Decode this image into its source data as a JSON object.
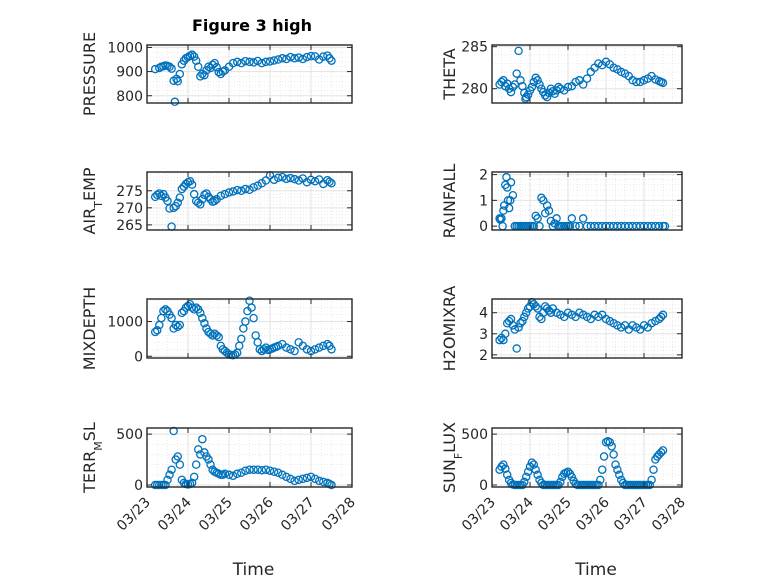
{
  "title": "Figure 3 high",
  "xlabel": "Time",
  "date_ticks": [
    "03/23",
    "03/24",
    "03/25",
    "03/26",
    "03/27",
    "03/28"
  ],
  "marker_color": "#0072BD",
  "chart_data": [
    {
      "type": "scatter",
      "name": "PRESSURE",
      "ylabel_main": "PRESSURE",
      "ylabel_sub": "",
      "xlim": [
        0,
        5
      ],
      "ylim": [
        770,
        1010
      ],
      "yticks": [
        800,
        900,
        1000
      ],
      "yticklabels": [
        "800",
        "900",
        "1000"
      ],
      "grid": true,
      "minor_grid": true,
      "x": [
        0.2,
        0.3,
        0.35,
        0.4,
        0.45,
        0.5,
        0.55,
        0.6,
        0.65,
        0.68,
        0.72,
        0.75,
        0.8,
        0.85,
        0.9,
        0.95,
        1.0,
        1.05,
        1.1,
        1.15,
        1.2,
        1.25,
        1.3,
        1.35,
        1.4,
        1.45,
        1.5,
        1.55,
        1.6,
        1.65,
        1.7,
        1.75,
        1.8,
        1.85,
        1.9,
        2.0,
        2.1,
        2.2,
        2.3,
        2.4,
        2.5,
        2.6,
        2.7,
        2.8,
        2.9,
        3.0,
        3.1,
        3.2,
        3.3,
        3.4,
        3.5,
        3.6,
        3.7,
        3.8,
        3.9,
        4.0,
        4.1,
        4.2,
        4.3,
        4.4,
        4.45,
        4.5
      ],
      "y": [
        910,
        915,
        920,
        922,
        925,
        923,
        920,
        912,
        862,
        775,
        870,
        860,
        890,
        930,
        945,
        955,
        960,
        965,
        970,
        962,
        945,
        920,
        880,
        890,
        885,
        905,
        920,
        915,
        928,
        935,
        918,
        898,
        890,
        900,
        905,
        920,
        935,
        940,
        935,
        943,
        940,
        938,
        944,
        935,
        940,
        942,
        946,
        950,
        955,
        952,
        960,
        955,
        958,
        952,
        960,
        964,
        963,
        950,
        962,
        966,
        955,
        945
      ]
    },
    {
      "type": "scatter",
      "name": "THETA",
      "ylabel_main": "THETA",
      "ylabel_sub": "",
      "xlim": [
        0,
        5
      ],
      "ylim": [
        278.3,
        285.2
      ],
      "yticks": [
        280,
        285
      ],
      "yticklabels": [
        "280",
        "285"
      ],
      "grid": true,
      "minor_grid": true,
      "x": [
        0.2,
        0.25,
        0.3,
        0.35,
        0.4,
        0.45,
        0.5,
        0.55,
        0.6,
        0.65,
        0.7,
        0.75,
        0.8,
        0.85,
        0.88,
        0.9,
        0.95,
        1.0,
        1.05,
        1.1,
        1.15,
        1.2,
        1.25,
        1.3,
        1.35,
        1.4,
        1.45,
        1.5,
        1.55,
        1.6,
        1.65,
        1.7,
        1.75,
        1.8,
        1.9,
        2.0,
        2.1,
        2.2,
        2.3,
        2.4,
        2.5,
        2.6,
        2.7,
        2.8,
        2.9,
        3.0,
        3.1,
        3.2,
        3.3,
        3.4,
        3.5,
        3.6,
        3.7,
        3.8,
        3.9,
        4.0,
        4.1,
        4.2,
        4.3,
        4.4,
        4.45,
        4.5
      ],
      "y": [
        280.5,
        280.8,
        281.0,
        280.3,
        280.6,
        280.0,
        279.6,
        280.2,
        280.5,
        281.8,
        284.5,
        281.0,
        280.3,
        279.5,
        278.8,
        279.0,
        279.3,
        279.8,
        280.2,
        280.8,
        281.3,
        281.0,
        280.5,
        280.0,
        279.6,
        279.2,
        279.0,
        279.5,
        280.0,
        279.7,
        279.4,
        279.8,
        280.2,
        280.0,
        279.8,
        280.2,
        280.3,
        280.8,
        281.0,
        280.5,
        281.2,
        282.0,
        282.5,
        283.0,
        282.8,
        283.2,
        282.9,
        282.5,
        282.3,
        282.0,
        281.8,
        281.5,
        281.0,
        280.8,
        280.8,
        281.0,
        281.2,
        281.5,
        281.1,
        280.9,
        280.8,
        280.7
      ]
    },
    {
      "type": "scatter",
      "name": "AIR_TEMP",
      "ylabel_main": "AIR",
      "ylabel_sub": "T",
      "ylabel_tail": "EMP",
      "xlim": [
        0,
        5
      ],
      "ylim": [
        263.5,
        280.5
      ],
      "yticks": [
        265,
        270,
        275
      ],
      "yticklabels": [
        "265",
        "270",
        "275"
      ],
      "grid": true,
      "minor_grid": true,
      "x": [
        0.2,
        0.25,
        0.3,
        0.35,
        0.4,
        0.45,
        0.5,
        0.55,
        0.6,
        0.65,
        0.7,
        0.75,
        0.8,
        0.85,
        0.9,
        0.95,
        1.0,
        1.05,
        1.1,
        1.15,
        1.2,
        1.25,
        1.3,
        1.35,
        1.4,
        1.45,
        1.5,
        1.55,
        1.6,
        1.65,
        1.7,
        1.8,
        1.9,
        2.0,
        2.1,
        2.2,
        2.3,
        2.4,
        2.5,
        2.6,
        2.7,
        2.8,
        2.9,
        3.0,
        3.1,
        3.2,
        3.3,
        3.4,
        3.5,
        3.6,
        3.7,
        3.8,
        3.9,
        4.0,
        4.1,
        4.2,
        4.3,
        4.4,
        4.45,
        4.5
      ],
      "y": [
        273.2,
        273.8,
        274.2,
        273.5,
        274.0,
        273.0,
        272.0,
        269.8,
        264.5,
        270.0,
        270.5,
        271.5,
        273.0,
        275.5,
        276.2,
        277.0,
        277.5,
        277.8,
        276.8,
        274.0,
        272.0,
        271.5,
        271.0,
        272.5,
        273.8,
        274.2,
        273.2,
        272.5,
        271.8,
        272.0,
        272.5,
        273.5,
        274.0,
        274.5,
        274.8,
        275.2,
        275.0,
        275.5,
        275.3,
        276.0,
        276.5,
        277.2,
        278.0,
        279.5,
        278.2,
        278.8,
        279.0,
        278.5,
        278.7,
        278.4,
        278.0,
        278.6,
        277.5,
        278.2,
        277.8,
        278.3,
        277.0,
        278.1,
        277.6,
        277.2
      ]
    },
    {
      "type": "scatter",
      "name": "RAINFALL",
      "ylabel_main": "RAINFALL",
      "ylabel_sub": "",
      "xlim": [
        0,
        5
      ],
      "ylim": [
        -0.15,
        2.1
      ],
      "yticks": [
        0,
        1,
        2
      ],
      "yticklabels": [
        "0",
        "1",
        "2"
      ],
      "grid": true,
      "minor_grid": true,
      "x": [
        0.2,
        0.22,
        0.25,
        0.28,
        0.3,
        0.32,
        0.35,
        0.38,
        0.4,
        0.42,
        0.45,
        0.48,
        0.5,
        0.55,
        0.6,
        0.65,
        0.7,
        0.75,
        0.8,
        0.85,
        0.9,
        0.95,
        1.0,
        1.05,
        1.1,
        1.15,
        1.2,
        1.25,
        1.3,
        1.35,
        1.4,
        1.45,
        1.5,
        1.55,
        1.6,
        1.65,
        1.7,
        1.75,
        1.8,
        1.85,
        1.9,
        1.95,
        2.0,
        2.05,
        2.1,
        2.2,
        2.3,
        2.4,
        2.5,
        2.6,
        2.7,
        2.8,
        2.9,
        3.0,
        3.1,
        3.2,
        3.3,
        3.4,
        3.5,
        3.6,
        3.7,
        3.8,
        3.9,
        4.0,
        4.1,
        4.2,
        4.3,
        4.4,
        4.5,
        4.55
      ],
      "y": [
        0.3,
        0.25,
        0.3,
        0.0,
        0.6,
        0.8,
        1.6,
        1.9,
        1.5,
        1.0,
        0.7,
        1.0,
        1.7,
        1.2,
        0.0,
        0.0,
        0.0,
        0.0,
        0.0,
        0.0,
        0.0,
        0.0,
        0.0,
        0.0,
        0.0,
        0.4,
        0.3,
        0.0,
        1.1,
        1.0,
        0.5,
        0.8,
        0.6,
        0.2,
        0.0,
        0.1,
        0.3,
        0.0,
        0.0,
        0.0,
        0.0,
        0.0,
        0.0,
        0.0,
        0.3,
        0.0,
        0.0,
        0.3,
        0.0,
        0.0,
        0.0,
        0.0,
        0.0,
        0.0,
        0.0,
        0.0,
        0.0,
        0.0,
        0.0,
        0.0,
        0.0,
        0.0,
        0.0,
        0.0,
        0.0,
        0.0,
        0.0,
        0.0,
        0.0,
        0.0
      ]
    },
    {
      "type": "scatter",
      "name": "MIXDEPTH",
      "ylabel_main": "MIXDEPTH",
      "ylabel_sub": "",
      "xlim": [
        0,
        5
      ],
      "ylim": [
        -50,
        1650
      ],
      "yticks": [
        0,
        1000
      ],
      "yticklabels": [
        "0",
        "1000"
      ],
      "grid": true,
      "minor_grid": true,
      "x": [
        0.2,
        0.25,
        0.3,
        0.35,
        0.4,
        0.45,
        0.5,
        0.55,
        0.6,
        0.65,
        0.7,
        0.75,
        0.8,
        0.85,
        0.9,
        0.95,
        1.0,
        1.05,
        1.1,
        1.15,
        1.2,
        1.25,
        1.3,
        1.35,
        1.4,
        1.45,
        1.5,
        1.55,
        1.6,
        1.65,
        1.7,
        1.75,
        1.8,
        1.85,
        1.9,
        1.95,
        2.0,
        2.05,
        2.1,
        2.15,
        2.2,
        2.25,
        2.3,
        2.35,
        2.4,
        2.45,
        2.5,
        2.55,
        2.6,
        2.65,
        2.7,
        2.75,
        2.8,
        2.85,
        2.9,
        2.95,
        3.0,
        3.05,
        3.1,
        3.15,
        3.2,
        3.3,
        3.4,
        3.5,
        3.6,
        3.7,
        3.8,
        3.9,
        4.0,
        4.1,
        4.2,
        4.3,
        4.4,
        4.45,
        4.5
      ],
      "y": [
        700,
        750,
        900,
        1100,
        1300,
        1350,
        1300,
        1200,
        1100,
        800,
        900,
        850,
        900,
        1250,
        1300,
        1400,
        1450,
        1500,
        1400,
        1350,
        1400,
        1350,
        1250,
        1100,
        950,
        800,
        700,
        650,
        600,
        650,
        600,
        550,
        300,
        200,
        150,
        100,
        50,
        40,
        30,
        50,
        100,
        300,
        500,
        800,
        1000,
        1300,
        1600,
        1400,
        1100,
        600,
        400,
        200,
        150,
        200,
        250,
        180,
        200,
        220,
        250,
        270,
        300,
        350,
        250,
        200,
        150,
        400,
        300,
        200,
        150,
        200,
        250,
        300,
        350,
        300,
        200
      ]
    },
    {
      "type": "scatter",
      "name": "H2OMIXRA",
      "ylabel_main": "H2OMIXRA",
      "ylabel_sub": "",
      "xlim": [
        0,
        5
      ],
      "ylim": [
        1.85,
        4.65
      ],
      "yticks": [
        2,
        3,
        4
      ],
      "yticklabels": [
        "2",
        "3",
        "4"
      ],
      "grid": true,
      "minor_grid": true,
      "x": [
        0.2,
        0.25,
        0.3,
        0.35,
        0.4,
        0.45,
        0.5,
        0.55,
        0.6,
        0.65,
        0.7,
        0.75,
        0.8,
        0.85,
        0.9,
        0.95,
        1.0,
        1.05,
        1.1,
        1.15,
        1.2,
        1.25,
        1.3,
        1.35,
        1.4,
        1.45,
        1.5,
        1.55,
        1.6,
        1.7,
        1.8,
        1.9,
        2.0,
        2.1,
        2.2,
        2.3,
        2.4,
        2.5,
        2.6,
        2.7,
        2.8,
        2.9,
        3.0,
        3.1,
        3.2,
        3.3,
        3.4,
        3.5,
        3.6,
        3.7,
        3.8,
        3.9,
        4.0,
        4.1,
        4.2,
        4.3,
        4.4,
        4.45,
        4.5
      ],
      "y": [
        2.7,
        2.8,
        2.7,
        3.0,
        3.5,
        3.6,
        3.7,
        3.4,
        3.2,
        2.3,
        3.3,
        3.5,
        3.6,
        3.8,
        4.0,
        4.2,
        4.3,
        4.5,
        4.4,
        4.3,
        4.2,
        3.8,
        3.7,
        4.0,
        4.3,
        4.2,
        4.1,
        4.0,
        4.2,
        4.0,
        3.9,
        3.8,
        4.0,
        3.9,
        3.8,
        4.0,
        3.9,
        3.8,
        3.7,
        3.9,
        3.8,
        3.9,
        3.7,
        3.6,
        3.5,
        3.4,
        3.3,
        3.4,
        3.2,
        3.4,
        3.3,
        3.2,
        3.4,
        3.3,
        3.5,
        3.6,
        3.7,
        3.8,
        3.9
      ]
    },
    {
      "type": "scatter",
      "name": "TERR_MSL",
      "ylabel_main": "TERR",
      "ylabel_sub": "M",
      "ylabel_tail": "SL",
      "xlim": [
        0,
        5
      ],
      "ylim": [
        -20,
        560
      ],
      "yticks": [
        0,
        500
      ],
      "yticklabels": [
        "0",
        "500"
      ],
      "grid": true,
      "minor_grid": true,
      "x": [
        0.2,
        0.25,
        0.3,
        0.35,
        0.4,
        0.45,
        0.5,
        0.55,
        0.6,
        0.65,
        0.7,
        0.75,
        0.8,
        0.85,
        0.9,
        0.95,
        1.0,
        1.05,
        1.1,
        1.15,
        1.2,
        1.25,
        1.3,
        1.35,
        1.4,
        1.45,
        1.5,
        1.55,
        1.6,
        1.65,
        1.7,
        1.75,
        1.8,
        1.85,
        1.9,
        2.0,
        2.1,
        2.2,
        2.3,
        2.4,
        2.5,
        2.6,
        2.7,
        2.8,
        2.9,
        3.0,
        3.1,
        3.2,
        3.3,
        3.4,
        3.5,
        3.6,
        3.7,
        3.8,
        3.9,
        4.0,
        4.1,
        4.2,
        4.3,
        4.4,
        4.45,
        4.5
      ],
      "y": [
        0,
        0,
        0,
        0,
        0,
        0,
        50,
        100,
        150,
        530,
        250,
        280,
        200,
        50,
        20,
        10,
        5,
        10,
        20,
        80,
        200,
        350,
        300,
        450,
        320,
        280,
        250,
        200,
        150,
        130,
        120,
        110,
        100,
        100,
        110,
        100,
        90,
        110,
        120,
        140,
        150,
        150,
        150,
        145,
        150,
        140,
        130,
        120,
        100,
        80,
        60,
        40,
        50,
        60,
        70,
        80,
        60,
        40,
        30,
        20,
        10,
        0
      ]
    },
    {
      "type": "scatter",
      "name": "SUN_FLUX",
      "ylabel_main": "SUN",
      "ylabel_sub": "F",
      "ylabel_tail": "LUX",
      "xlim": [
        0,
        5
      ],
      "ylim": [
        -20,
        560
      ],
      "yticks": [
        0,
        500
      ],
      "yticklabels": [
        "0",
        "500"
      ],
      "grid": true,
      "minor_grid": true,
      "x": [
        0.2,
        0.25,
        0.3,
        0.35,
        0.4,
        0.45,
        0.5,
        0.55,
        0.6,
        0.65,
        0.7,
        0.75,
        0.8,
        0.85,
        0.9,
        0.95,
        1.0,
        1.05,
        1.1,
        1.15,
        1.2,
        1.25,
        1.3,
        1.35,
        1.4,
        1.45,
        1.5,
        1.55,
        1.6,
        1.65,
        1.7,
        1.75,
        1.8,
        1.85,
        1.9,
        1.95,
        2.0,
        2.05,
        2.1,
        2.15,
        2.2,
        2.25,
        2.3,
        2.35,
        2.4,
        2.45,
        2.5,
        2.55,
        2.6,
        2.65,
        2.7,
        2.75,
        2.8,
        2.85,
        2.9,
        2.95,
        3.0,
        3.05,
        3.1,
        3.15,
        3.2,
        3.25,
        3.3,
        3.35,
        3.4,
        3.45,
        3.5,
        3.55,
        3.6,
        3.65,
        3.7,
        3.75,
        3.8,
        3.85,
        3.9,
        3.95,
        4.0,
        4.05,
        4.1,
        4.15,
        4.2,
        4.25,
        4.3,
        4.35,
        4.4,
        4.45,
        4.5
      ],
      "y": [
        150,
        180,
        200,
        160,
        100,
        50,
        20,
        5,
        0,
        0,
        0,
        0,
        0,
        30,
        80,
        130,
        180,
        220,
        200,
        150,
        100,
        50,
        20,
        0,
        0,
        0,
        0,
        0,
        0,
        0,
        0,
        0,
        30,
        80,
        110,
        120,
        130,
        110,
        80,
        40,
        10,
        0,
        0,
        0,
        0,
        0,
        0,
        0,
        0,
        0,
        0,
        0,
        0,
        50,
        150,
        280,
        420,
        430,
        420,
        380,
        300,
        200,
        150,
        100,
        50,
        20,
        0,
        0,
        0,
        0,
        0,
        0,
        0,
        0,
        0,
        0,
        0,
        0,
        0,
        0,
        50,
        150,
        250,
        280,
        300,
        320,
        340
      ]
    }
  ]
}
